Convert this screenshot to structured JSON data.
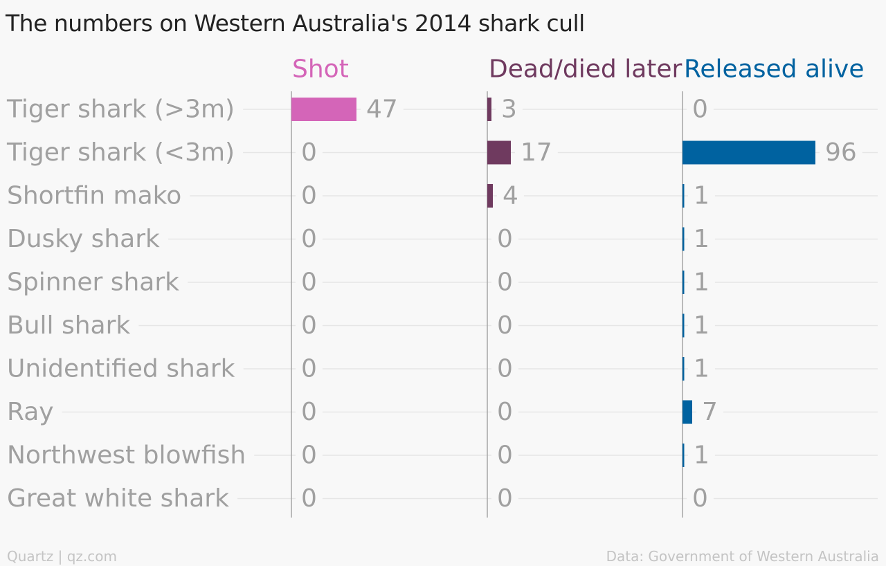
{
  "chart_data": {
    "type": "bar",
    "title": "The numbers on Western Australia's 2014 shark cull",
    "categories": [
      "Tiger shark (>3m)",
      "Tiger shark (<3m)",
      "Shortfin mako",
      "Dusky shark",
      "Spinner shark",
      "Bull shark",
      "Unidentified shark",
      "Ray",
      "Northwest blowfish",
      "Great white shark"
    ],
    "series": [
      {
        "name": "Shot",
        "color": "#d465b8",
        "values": [
          47,
          0,
          0,
          0,
          0,
          0,
          0,
          0,
          0,
          0
        ]
      },
      {
        "name": "Dead/died later",
        "color": "#6f3a5f",
        "values": [
          3,
          17,
          4,
          0,
          0,
          0,
          0,
          0,
          0,
          0
        ]
      },
      {
        "name": "Released alive",
        "color": "#0062a0",
        "values": [
          0,
          96,
          1,
          1,
          1,
          1,
          1,
          7,
          1,
          0
        ]
      }
    ],
    "xlim": [
      0,
      100
    ],
    "grid": true,
    "layout": "small-multiples horizontal bars"
  },
  "colors": {
    "background": "#f8f8f8",
    "title": "#222222",
    "category_label": "#a0a0a0",
    "value_label": "#a0a0a0",
    "gridline": "#e6e6e6",
    "axis": "#a6a6a6",
    "footer": "#c4c4c4"
  },
  "footer": {
    "source_left": "Quartz | qz.com",
    "source_right": "Data: Government of Western Australia"
  }
}
